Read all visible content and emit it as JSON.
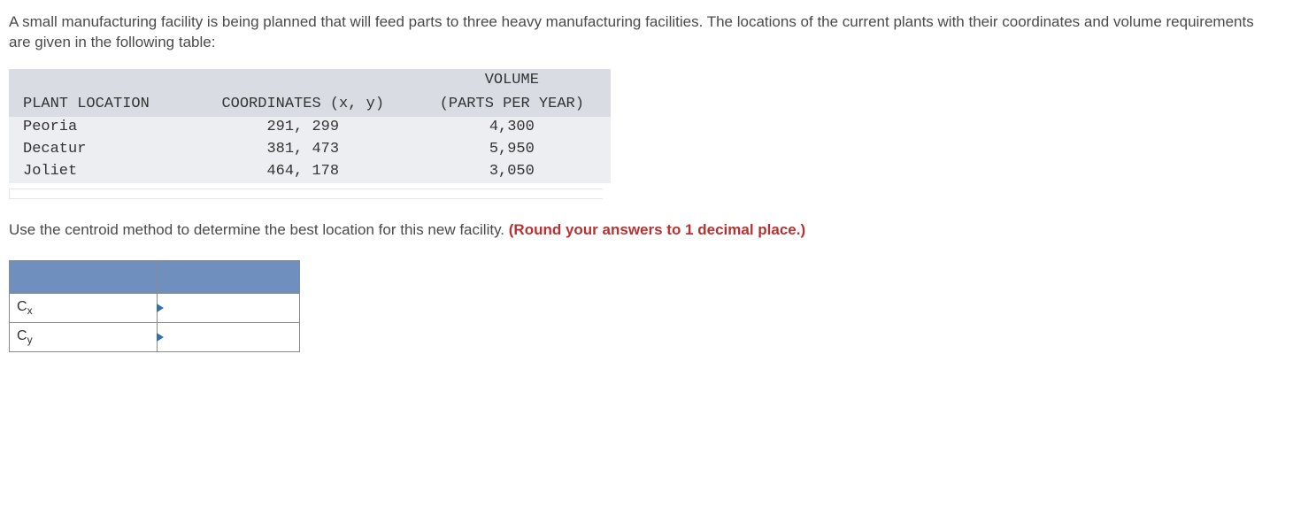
{
  "intro": "A small manufacturing facility is being planned that will feed parts to three heavy manufacturing facilities. The locations of the current plants with their coordinates and volume requirements are given in the following table:",
  "table": {
    "type": "table",
    "background_header": "#d9dde3",
    "background_row": "#eceef1",
    "font_family": "Courier New, monospace",
    "columns": [
      {
        "label": "PLANT LOCATION",
        "align": "left"
      },
      {
        "label": "COORDINATES (x, y)",
        "align": "center"
      },
      {
        "label_line1": "VOLUME",
        "label_line2": "(PARTS PER YEAR)",
        "align": "center"
      }
    ],
    "rows": [
      {
        "location": "Peoria",
        "coords": "291, 299",
        "volume": "4,300"
      },
      {
        "location": "Decatur",
        "coords": "381, 473",
        "volume": "5,950"
      },
      {
        "location": "Joliet",
        "coords": "464, 178",
        "volume": "3,050"
      }
    ]
  },
  "prompt": {
    "text": "Use the centroid method to determine the best location for this new facility. ",
    "emph": "(Round your answers to 1 decimal place.)",
    "emph_color": "#b83232"
  },
  "answer": {
    "header_color": "#6f8fbf",
    "border_color": "#8a8a8a",
    "marker_color": "#2f6fb3",
    "rows": [
      {
        "label_base": "C",
        "label_sub": "x",
        "value": ""
      },
      {
        "label_base": "C",
        "label_sub": "y",
        "value": ""
      }
    ]
  }
}
